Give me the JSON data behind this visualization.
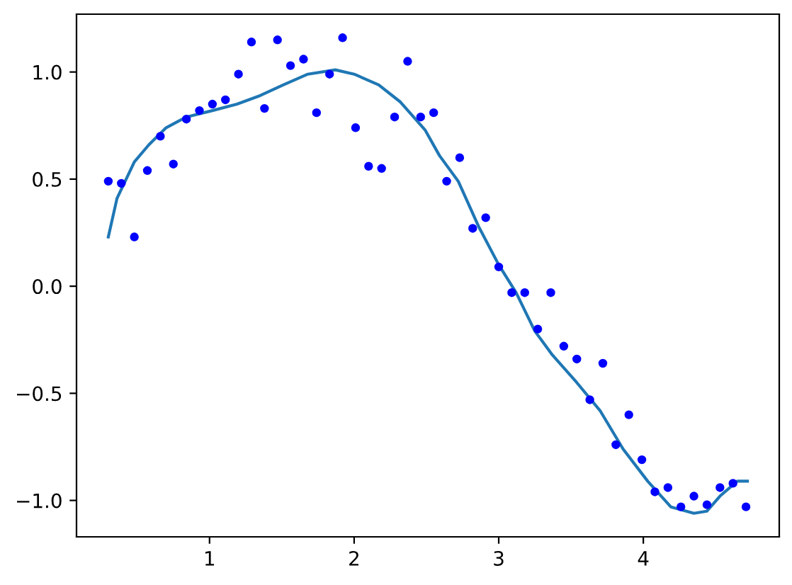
{
  "chart_data": {
    "type": "scatter",
    "xlim": [
      0.08,
      4.94
    ],
    "ylim": [
      -1.17,
      1.27
    ],
    "xticks": [
      1,
      2,
      3,
      4
    ],
    "yticks": [
      {
        "value": -1.0,
        "label": "−1.0"
      },
      {
        "value": -0.5,
        "label": "−0.5"
      },
      {
        "value": 0.0,
        "label": "0.0"
      },
      {
        "value": 0.5,
        "label": "0.5"
      },
      {
        "value": 1.0,
        "label": "1.0"
      }
    ],
    "grid": false,
    "legend": false,
    "series": [
      {
        "color": "#0000ff",
        "marker": "circle",
        "x": [
          0.3,
          0.39,
          0.48,
          0.57,
          0.66,
          0.75,
          0.84,
          0.93,
          1.02,
          1.11,
          1.2,
          1.29,
          1.38,
          1.47,
          1.56,
          1.65,
          1.74,
          1.83,
          1.92,
          2.01,
          2.1,
          2.19,
          2.28,
          2.37,
          2.46,
          2.55,
          2.64,
          2.73,
          2.82,
          2.91,
          3.0,
          3.09,
          3.18,
          3.27,
          3.36,
          3.45,
          3.54,
          3.63,
          3.72,
          3.81,
          3.9,
          3.99,
          4.08,
          4.17,
          4.26,
          4.35,
          4.44,
          4.53,
          4.62,
          4.71
        ],
        "values": [
          0.49,
          0.48,
          0.23,
          0.54,
          0.7,
          0.57,
          0.78,
          0.82,
          0.85,
          0.87,
          0.99,
          1.14,
          0.83,
          1.15,
          1.03,
          1.06,
          0.81,
          0.99,
          1.16,
          0.74,
          0.56,
          0.55,
          0.79,
          1.05,
          0.79,
          0.81,
          0.49,
          0.6,
          0.27,
          0.32,
          0.09,
          -0.03,
          -0.03,
          -0.2,
          -0.03,
          -0.28,
          -0.34,
          -0.53,
          -0.36,
          -0.74,
          -0.6,
          -0.81,
          -0.96,
          -0.94,
          -1.03,
          -0.98,
          -1.02,
          -0.94,
          -0.92,
          -1.03
        ]
      },
      {
        "type": "line",
        "color": "#1f77b4",
        "marker": "none",
        "line_style": "solid",
        "x": [
          0.3,
          0.36,
          0.48,
          0.58,
          0.7,
          0.84,
          1.02,
          1.19,
          1.35,
          1.51,
          1.68,
          1.87,
          2.0,
          2.17,
          2.32,
          2.49,
          2.59,
          2.72,
          2.86,
          3.0,
          3.12,
          3.25,
          3.37,
          3.54,
          3.7,
          3.86,
          4.03,
          4.19,
          4.35,
          4.44,
          4.53,
          4.65,
          4.72
        ],
        "values": [
          0.23,
          0.41,
          0.58,
          0.66,
          0.74,
          0.79,
          0.82,
          0.85,
          0.89,
          0.94,
          0.99,
          1.01,
          0.99,
          0.94,
          0.86,
          0.73,
          0.61,
          0.49,
          0.28,
          0.1,
          -0.03,
          -0.21,
          -0.32,
          -0.45,
          -0.58,
          -0.76,
          -0.91,
          -1.03,
          -1.06,
          -1.05,
          -0.98,
          -0.91,
          -0.91
        ]
      }
    ]
  }
}
